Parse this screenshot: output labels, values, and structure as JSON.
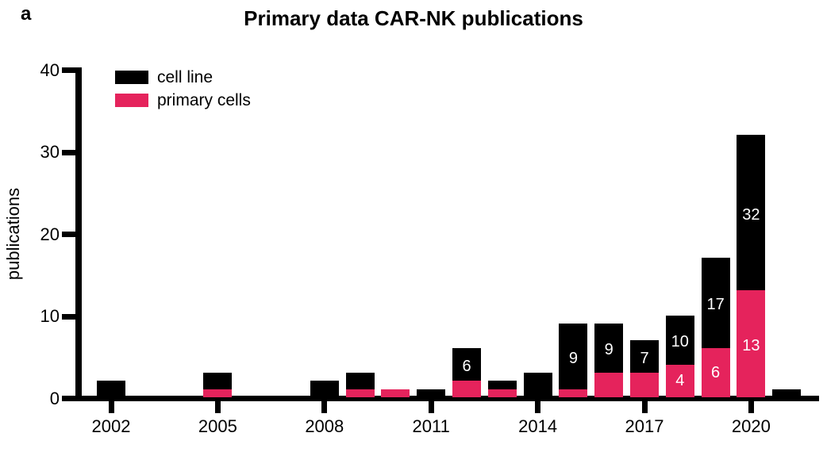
{
  "panel_label": "a",
  "title": "Primary data CAR-NK publications",
  "ylabel": "publications",
  "legend": [
    {
      "label": "cell line",
      "color": "#000000"
    },
    {
      "label": "primary cells",
      "color": "#E5235C"
    }
  ],
  "chart_data": {
    "type": "bar",
    "stacked": true,
    "title": "Primary data CAR-NK publications",
    "xlabel": "",
    "ylabel": "publications",
    "ylim": [
      0,
      40
    ],
    "yticks": [
      "0",
      "10",
      "20",
      "30",
      "40"
    ],
    "ytick_values": [
      0,
      10,
      20,
      30,
      40
    ],
    "xtick_years": [
      2002,
      2005,
      2008,
      2011,
      2014,
      2017,
      2020
    ],
    "legend_position": "upper-left-inside",
    "grid": false,
    "categories": [
      2002,
      2003,
      2004,
      2005,
      2006,
      2007,
      2008,
      2009,
      2010,
      2011,
      2012,
      2013,
      2014,
      2015,
      2016,
      2017,
      2018,
      2019,
      2020,
      2021
    ],
    "series": [
      {
        "name": "primary cells",
        "color": "#E5235C",
        "values": [
          0,
          0,
          0,
          1,
          0,
          0,
          0,
          1,
          1,
          0,
          2,
          1,
          0,
          1,
          3,
          3,
          4,
          6,
          13,
          0
        ]
      },
      {
        "name": "cell line",
        "color": "#000000",
        "values": [
          2,
          0,
          0,
          2,
          0,
          0,
          2,
          2,
          0,
          1,
          4,
          1,
          3,
          8,
          6,
          4,
          6,
          11,
          19,
          1
        ]
      }
    ],
    "totals": [
      2,
      0,
      0,
      3,
      0,
      0,
      2,
      3,
      1,
      1,
      6,
      2,
      3,
      9,
      9,
      7,
      10,
      17,
      32,
      1
    ],
    "total_labels": [
      "",
      "",
      "",
      "",
      "",
      "",
      "",
      "",
      "",
      "",
      "6",
      "",
      "",
      "9",
      "9",
      "7",
      "10",
      "17",
      "32",
      ""
    ],
    "pink_labels": [
      "",
      "",
      "",
      "",
      "",
      "",
      "",
      "",
      "",
      "",
      "",
      "",
      "",
      "",
      "",
      "",
      "4",
      "6",
      "13",
      ""
    ]
  }
}
